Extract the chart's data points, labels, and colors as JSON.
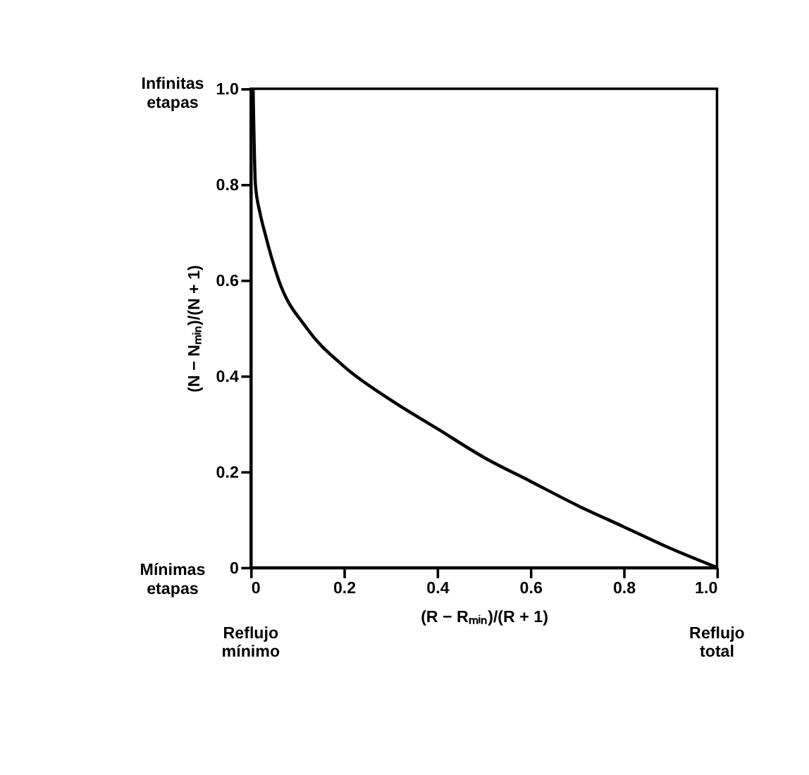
{
  "chart_data": {
    "type": "line",
    "xlabel": "(R − Rₘᵢₙ)/(R + 1)",
    "ylabel": "(N − Nₘᵢₙ)/(N + 1)",
    "annotations": [
      "Infinitas etapas",
      "Mínimas etapas",
      "Reflujo mínimo",
      "Reflujo total"
    ],
    "x": [
      0.005,
      0.01,
      0.02,
      0.03,
      0.06,
      0.12,
      0.2,
      0.3,
      0.4,
      0.5,
      0.6,
      0.7,
      0.8,
      0.9,
      1.0
    ],
    "series": [
      {
        "color": "#000000",
        "values": [
          1.0,
          0.8,
          0.74,
          0.7,
          0.6,
          0.5,
          0.42,
          0.35,
          0.29,
          0.23,
          0.18,
          0.13,
          0.085,
          0.04,
          0.0
        ]
      }
    ],
    "xlim": [
      0,
      1.0
    ],
    "ylim": [
      0,
      1.0
    ],
    "xticks": [
      0,
      0.2,
      0.4,
      0.6,
      0.8,
      {
        "value": 1.0,
        "label": "1.0"
      }
    ],
    "yticks": [
      0,
      0.2,
      0.4,
      0.6,
      0.8,
      {
        "value": 1.0,
        "label": "1.0"
      }
    ],
    "grid": false,
    "marker": "none",
    "line_style": "solid"
  }
}
